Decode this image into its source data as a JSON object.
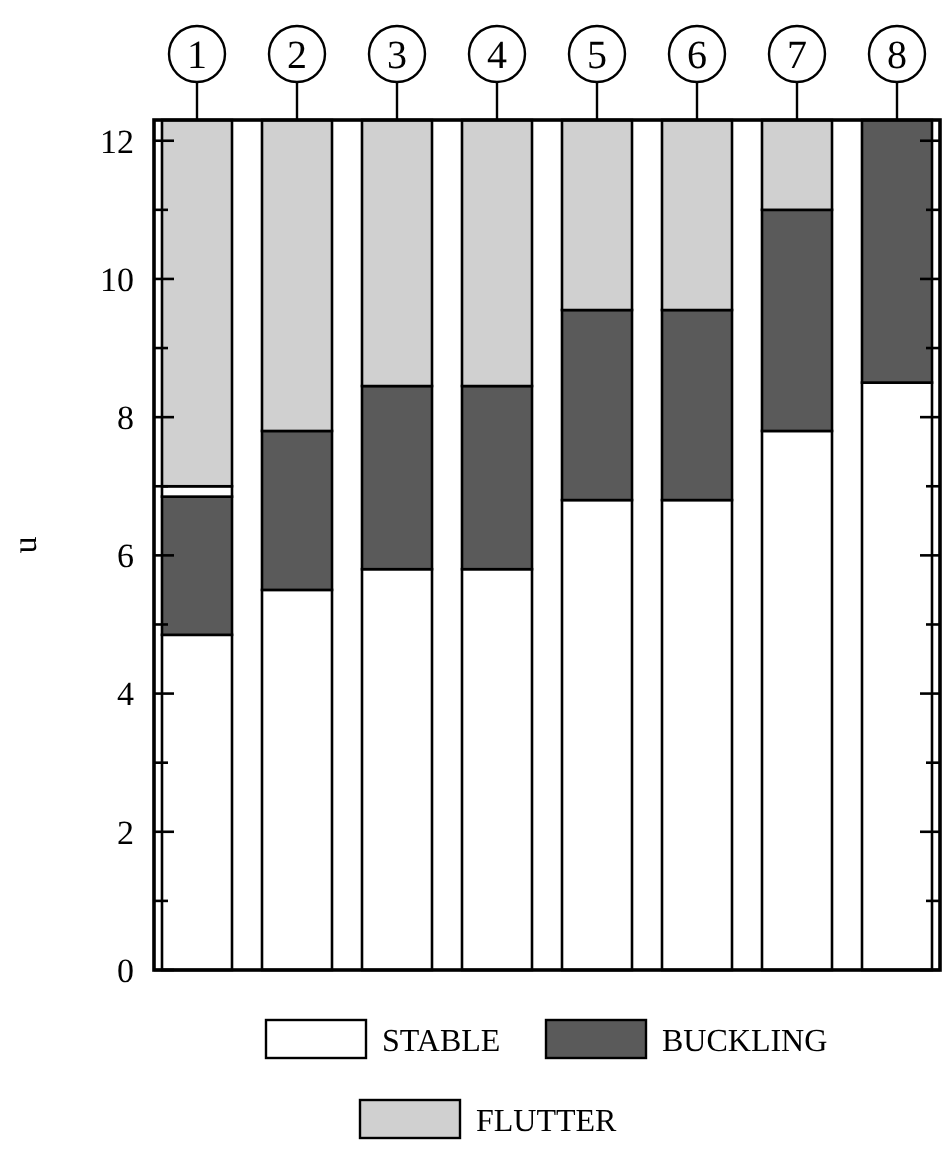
{
  "chart_data": {
    "type": "bar",
    "stacked": true,
    "ylabel": "u",
    "categories": [
      "1",
      "2",
      "3",
      "4",
      "5",
      "6",
      "7",
      "8"
    ],
    "ylim": [
      0,
      12.3
    ],
    "yticks": [
      0,
      {
        "value": 1,
        "label": null
      },
      2,
      {
        "value": 3,
        "label": null
      },
      4,
      {
        "value": 5,
        "label": null
      },
      6,
      {
        "value": 7,
        "label": null
      },
      8,
      {
        "value": 9,
        "label": null
      },
      10,
      {
        "value": 11,
        "label": null
      },
      12
    ],
    "legend": "bottom",
    "series": [
      {
        "name": "STABLE",
        "color": "#ffffff",
        "values": [
          4.85,
          5.5,
          5.8,
          5.8,
          6.8,
          6.8,
          7.8,
          8.5
        ]
      },
      {
        "name": "BUCKLING",
        "color": "#5a5a5a",
        "values": [
          2.0,
          2.3,
          2.65,
          2.65,
          2.75,
          2.75,
          3.2,
          3.8
        ]
      },
      {
        "color": "#ffffff",
        "values": [
          0.15,
          0,
          0,
          0,
          0,
          0,
          0,
          0
        ]
      },
      {
        "name": "FLUTTER",
        "color": "#d0d0d0",
        "values": [
          5.3,
          4.5,
          3.85,
          3.85,
          2.75,
          2.75,
          1.3,
          0
        ]
      }
    ]
  }
}
